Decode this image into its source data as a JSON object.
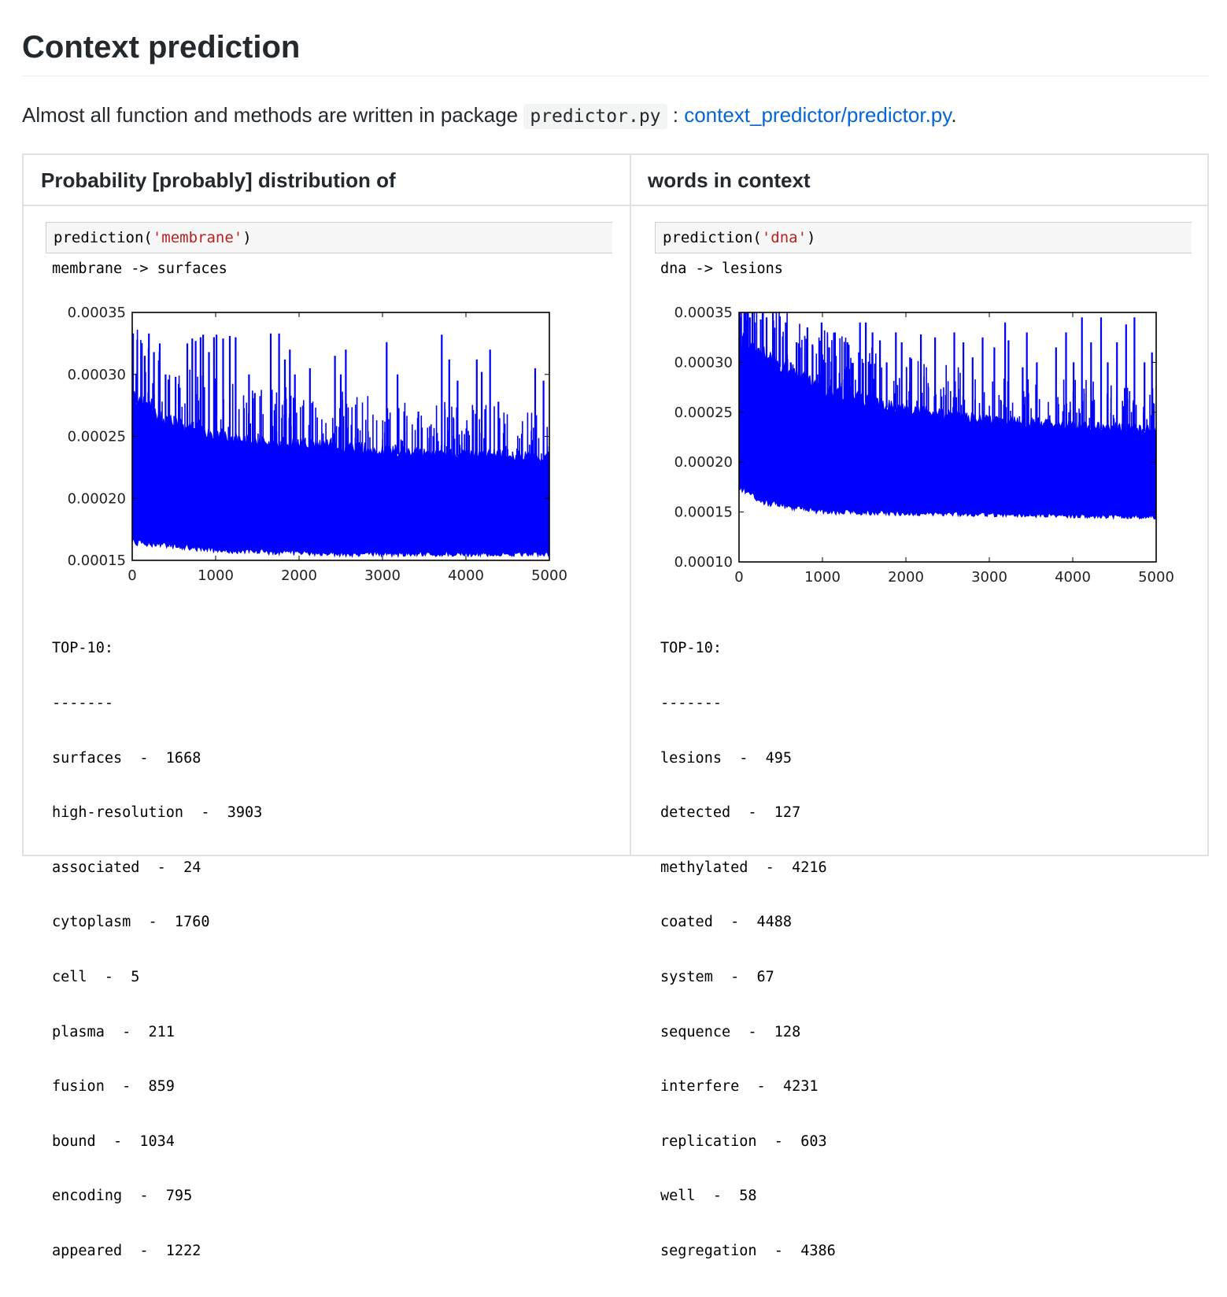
{
  "section": {
    "title": "Context prediction",
    "intro_text": "Almost all function and methods are written in package ",
    "intro_code": "predictor.py",
    "intro_sep": " : ",
    "link_text": "context_predictor/predictor.py",
    "intro_end": "."
  },
  "table": {
    "headers": [
      "Probability [probably] distribution of",
      "words in context"
    ]
  },
  "colors": {
    "series": "#0000ff",
    "link": "#0366d6",
    "string_literal": "#ba2121"
  },
  "panels": [
    {
      "code_fn_open": "prediction(",
      "code_arg": "'membrane'",
      "code_close": ")",
      "result": "membrane -> surfaces",
      "top_title": "TOP-10:",
      "top_rule": "-------",
      "top": [
        {
          "word": "surfaces",
          "index": 1668
        },
        {
          "word": "high-resolution",
          "index": 3903
        },
        {
          "word": "associated",
          "index": 24
        },
        {
          "word": "cytoplasm",
          "index": 1760
        },
        {
          "word": "cell",
          "index": 5
        },
        {
          "word": "plasma",
          "index": 211
        },
        {
          "word": "fusion",
          "index": 859
        },
        {
          "word": "bound",
          "index": 1034
        },
        {
          "word": "encoding",
          "index": 795
        },
        {
          "word": "appeared",
          "index": 1222
        }
      ],
      "top_lines": [
        "surfaces  -  1668",
        "high-resolution  -  3903",
        "associated  -  24",
        "cytoplasm  -  1760",
        "cell  -  5",
        "plasma  -  211",
        "fusion  -  859",
        "bound  -  1034",
        "encoding  -  795",
        "appeared  -  1222"
      ]
    },
    {
      "code_fn_open": "prediction(",
      "code_arg": "'dna'",
      "code_close": ")",
      "result": "dna -> lesions",
      "top_title": "TOP-10:",
      "top_rule": "-------",
      "top": [
        {
          "word": "lesions",
          "index": 495
        },
        {
          "word": "detected",
          "index": 127
        },
        {
          "word": "methylated",
          "index": 4216
        },
        {
          "word": "coated",
          "index": 4488
        },
        {
          "word": "system",
          "index": 67
        },
        {
          "word": "sequence",
          "index": 128
        },
        {
          "word": "interfere",
          "index": 4231
        },
        {
          "word": "replication",
          "index": 603
        },
        {
          "word": "well",
          "index": 58
        },
        {
          "word": "segregation",
          "index": 4386
        }
      ],
      "top_lines": [
        "lesions  -  495",
        "detected  -  127",
        "methylated  -  4216",
        "coated  -  4488",
        "system  -  67",
        "sequence  -  128",
        "interfere  -  4231",
        "replication  -  603",
        "well  -  58",
        "segregation  -  4386"
      ]
    }
  ],
  "chart_data": [
    {
      "type": "line",
      "title": "",
      "xlabel": "",
      "ylabel": "",
      "xlim": [
        0,
        5000
      ],
      "ylim": [
        0.00015,
        0.00035
      ],
      "x_ticks": [
        "0",
        "1000",
        "2000",
        "3000",
        "4000",
        "5000"
      ],
      "y_ticks": [
        "0.00015",
        "0.00020",
        "0.00025",
        "0.00030",
        "0.00035"
      ],
      "grid": false,
      "series": [
        {
          "color": "#0000ff",
          "x_range": [
            0,
            5000
          ],
          "band_low": [
            [
              0,
              0.000165
            ],
            [
              1000,
              0.000158
            ],
            [
              2500,
              0.000155
            ],
            [
              5000,
              0.000155
            ]
          ],
          "band_high": [
            [
              0,
              0.00028
            ],
            [
              400,
              0.00026
            ],
            [
              1200,
              0.000245
            ],
            [
              2500,
              0.00024
            ],
            [
              3300,
              0.000235
            ],
            [
              5000,
              0.000232
            ]
          ],
          "spikes": [
            [
              10,
              0.000333
            ],
            [
              60,
              0.000328
            ],
            [
              150,
              0.000315
            ],
            [
              200,
              0.000333
            ],
            [
              260,
              0.000318
            ],
            [
              330,
              0.000325
            ],
            [
              400,
              0.0003
            ],
            [
              520,
              0.000298
            ],
            [
              660,
              0.000325
            ],
            [
              720,
              0.000329
            ],
            [
              760,
              0.000327
            ],
            [
              820,
              0.00033
            ],
            [
              850,
              0.000332
            ],
            [
              920,
              0.000318
            ],
            [
              980,
              0.00033
            ],
            [
              1010,
              0.000332
            ],
            [
              1090,
              0.000329
            ],
            [
              1170,
              0.000331
            ],
            [
              1240,
              0.00033
            ],
            [
              1400,
              0.0003
            ],
            [
              1470,
              0.000285
            ],
            [
              1660,
              0.000333
            ],
            [
              1760,
              0.000333
            ],
            [
              1830,
              0.000312
            ],
            [
              1890,
              0.00032
            ],
            [
              1950,
              0.0003
            ],
            [
              2130,
              0.000305
            ],
            [
              2430,
              0.000315
            ],
            [
              2500,
              0.0003
            ],
            [
              2560,
              0.00032
            ],
            [
              3050,
              0.000326
            ],
            [
              3180,
              0.0003
            ],
            [
              3430,
              0.00027
            ],
            [
              3710,
              0.000332
            ],
            [
              3800,
              0.000312
            ],
            [
              3900,
              0.000295
            ],
            [
              4130,
              0.000312
            ],
            [
              4190,
              0.000302
            ],
            [
              4290,
              0.00032
            ],
            [
              4390,
              0.000278
            ],
            [
              4830,
              0.000305
            ],
            [
              4930,
              0.000295
            ]
          ]
        }
      ]
    },
    {
      "type": "line",
      "title": "",
      "xlabel": "",
      "ylabel": "",
      "xlim": [
        0,
        5000
      ],
      "ylim": [
        0.0001,
        0.00035
      ],
      "x_ticks": [
        "0",
        "1000",
        "2000",
        "3000",
        "4000",
        "5000"
      ],
      "y_ticks": [
        "0.00010",
        "0.00015",
        "0.00020",
        "0.00025",
        "0.00030",
        "0.00035"
      ],
      "grid": false,
      "series": [
        {
          "color": "#0000ff",
          "x_range": [
            0,
            5000
          ],
          "band_low": [
            [
              0,
              0.000175
            ],
            [
              300,
              0.00016
            ],
            [
              1000,
              0.00015
            ],
            [
              5000,
              0.000145
            ]
          ],
          "band_high": [
            [
              0,
              0.00032
            ],
            [
              400,
              0.0003
            ],
            [
              1000,
              0.00027
            ],
            [
              2000,
              0.00025
            ],
            [
              3000,
              0.00024
            ],
            [
              5000,
              0.00023
            ]
          ],
          "spikes": [
            [
              20,
              0.000345
            ],
            [
              80,
              0.000342
            ],
            [
              130,
              0.000345
            ],
            [
              190,
              0.00034
            ],
            [
              260,
              0.000343
            ],
            [
              330,
              0.000345
            ],
            [
              410,
              0.000342
            ],
            [
              490,
              0.000346
            ],
            [
              560,
              0.00034
            ],
            [
              620,
              0.0003
            ],
            [
              690,
              0.00032
            ],
            [
              820,
              0.000335
            ],
            [
              880,
              0.000318
            ],
            [
              990,
              0.00034
            ],
            [
              1080,
              0.000315
            ],
            [
              1150,
              0.00033
            ],
            [
              1300,
              0.00032
            ],
            [
              1450,
              0.00034
            ],
            [
              1520,
              0.00034
            ],
            [
              1600,
              0.00033
            ],
            [
              1690,
              0.000322
            ],
            [
              1770,
              0.0003
            ],
            [
              1880,
              0.00033
            ],
            [
              1950,
              0.00032
            ],
            [
              2050,
              0.000305
            ],
            [
              2180,
              0.000328
            ],
            [
              2350,
              0.000325
            ],
            [
              2580,
              0.00033
            ],
            [
              2690,
              0.00032
            ],
            [
              2800,
              0.000305
            ],
            [
              2920,
              0.000325
            ],
            [
              3060,
              0.000315
            ],
            [
              3190,
              0.00034
            ],
            [
              3230,
              0.000322
            ],
            [
              3400,
              0.000295
            ],
            [
              3450,
              0.00033
            ],
            [
              3570,
              0.0003
            ],
            [
              3800,
              0.000315
            ],
            [
              3920,
              0.00033
            ],
            [
              4010,
              0.0003
            ],
            [
              4110,
              0.000345
            ],
            [
              4220,
              0.00032
            ],
            [
              4340,
              0.000345
            ],
            [
              4420,
              0.0003
            ],
            [
              4530,
              0.00032
            ],
            [
              4640,
              0.000338
            ],
            [
              4740,
              0.000345
            ],
            [
              4860,
              0.0003
            ],
            [
              4950,
              0.00031
            ]
          ]
        }
      ]
    }
  ]
}
